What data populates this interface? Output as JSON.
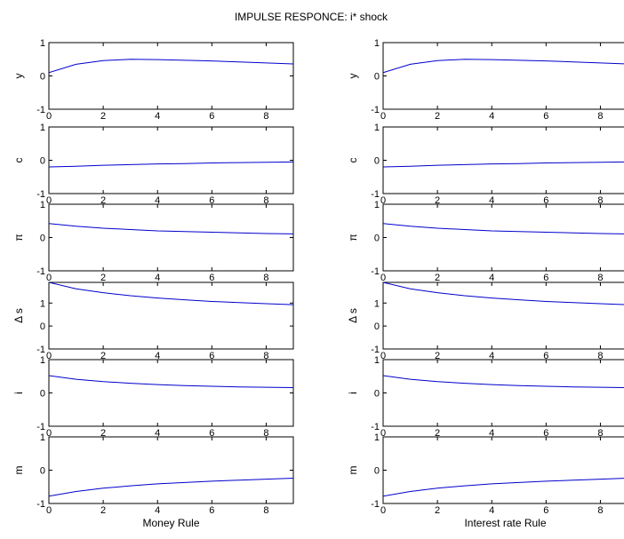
{
  "title": "IMPULSE RESPONCE: i* shock",
  "chart_data": {
    "type": "line",
    "title": "IMPULSE RESPONCE: i* shock",
    "line_color": "#0000cc",
    "columns": [
      {
        "xlabel": "Money Rule",
        "panels": [
          {
            "ylabel": "y",
            "ylim": [
              -1,
              1
            ],
            "yticks": [
              "-1",
              "0",
              "1"
            ],
            "x": [
              0,
              1,
              2,
              3,
              4,
              5,
              6,
              7,
              8,
              9
            ],
            "values": [
              0.1,
              0.35,
              0.46,
              0.5,
              0.49,
              0.47,
              0.45,
              0.42,
              0.39,
              0.36
            ]
          },
          {
            "ylabel": "c",
            "ylim": [
              -1,
              1
            ],
            "yticks": [
              "-1",
              "0",
              "1"
            ],
            "x": [
              0,
              1,
              2,
              3,
              4,
              5,
              6,
              7,
              8,
              9
            ],
            "values": [
              -0.2,
              -0.18,
              -0.15,
              -0.13,
              -0.11,
              -0.1,
              -0.08,
              -0.07,
              -0.06,
              -0.05
            ]
          },
          {
            "ylabel": "π",
            "ylim": [
              -1,
              1
            ],
            "yticks": [
              "-1",
              "0",
              "1"
            ],
            "x": [
              0,
              1,
              2,
              3,
              4,
              5,
              6,
              7,
              8,
              9
            ],
            "values": [
              0.42,
              0.34,
              0.28,
              0.24,
              0.2,
              0.18,
              0.16,
              0.14,
              0.12,
              0.11
            ]
          },
          {
            "ylabel": "Δ s",
            "ylim": [
              -1,
              1.9
            ],
            "yticks": [
              "-1",
              "0",
              "1"
            ],
            "x": [
              0,
              1,
              2,
              3,
              4,
              5,
              6,
              7,
              8,
              9
            ],
            "values": [
              1.9,
              1.62,
              1.45,
              1.32,
              1.22,
              1.14,
              1.07,
              1.02,
              0.97,
              0.93
            ]
          },
          {
            "ylabel": "i",
            "ylim": [
              -1,
              1
            ],
            "yticks": [
              "-1",
              "0",
              "1"
            ],
            "x": [
              0,
              1,
              2,
              3,
              4,
              5,
              6,
              7,
              8,
              9
            ],
            "values": [
              0.52,
              0.41,
              0.34,
              0.29,
              0.25,
              0.22,
              0.2,
              0.18,
              0.17,
              0.16
            ]
          },
          {
            "ylabel": "m",
            "ylim": [
              -1,
              1
            ],
            "yticks": [
              "-1",
              "0",
              "1"
            ],
            "x": [
              0,
              1,
              2,
              3,
              4,
              5,
              6,
              7,
              8,
              9
            ],
            "values": [
              -0.78,
              -0.64,
              -0.54,
              -0.47,
              -0.41,
              -0.37,
              -0.33,
              -0.3,
              -0.27,
              -0.24
            ]
          }
        ]
      },
      {
        "xlabel": "Interest rate Rule",
        "panels": [
          {
            "ylabel": "y",
            "ylim": [
              -1,
              1
            ],
            "yticks": [
              "-1",
              "0",
              "1"
            ],
            "x": [
              0,
              1,
              2,
              3,
              4,
              5,
              6,
              7,
              8,
              9
            ],
            "values": [
              0.1,
              0.35,
              0.46,
              0.5,
              0.49,
              0.47,
              0.45,
              0.42,
              0.39,
              0.36
            ]
          },
          {
            "ylabel": "c",
            "ylim": [
              -1,
              1
            ],
            "yticks": [
              "-1",
              "0",
              "1"
            ],
            "x": [
              0,
              1,
              2,
              3,
              4,
              5,
              6,
              7,
              8,
              9
            ],
            "values": [
              -0.2,
              -0.18,
              -0.15,
              -0.13,
              -0.11,
              -0.1,
              -0.08,
              -0.07,
              -0.06,
              -0.05
            ]
          },
          {
            "ylabel": "π",
            "ylim": [
              -1,
              1
            ],
            "yticks": [
              "-1",
              "0",
              "1"
            ],
            "x": [
              0,
              1,
              2,
              3,
              4,
              5,
              6,
              7,
              8,
              9
            ],
            "values": [
              0.42,
              0.34,
              0.28,
              0.24,
              0.2,
              0.18,
              0.16,
              0.14,
              0.12,
              0.11
            ]
          },
          {
            "ylabel": "Δ s",
            "ylim": [
              -1,
              1.9
            ],
            "yticks": [
              "-1",
              "0",
              "1"
            ],
            "x": [
              0,
              1,
              2,
              3,
              4,
              5,
              6,
              7,
              8,
              9
            ],
            "values": [
              1.9,
              1.62,
              1.45,
              1.32,
              1.22,
              1.14,
              1.07,
              1.02,
              0.97,
              0.93
            ]
          },
          {
            "ylabel": "i",
            "ylim": [
              -1,
              1
            ],
            "yticks": [
              "-1",
              "0",
              "1"
            ],
            "x": [
              0,
              1,
              2,
              3,
              4,
              5,
              6,
              7,
              8,
              9
            ],
            "values": [
              0.52,
              0.41,
              0.34,
              0.29,
              0.25,
              0.22,
              0.2,
              0.18,
              0.17,
              0.16
            ]
          },
          {
            "ylabel": "m",
            "ylim": [
              -1,
              1
            ],
            "yticks": [
              "-1",
              "0",
              "1"
            ],
            "x": [
              0,
              1,
              2,
              3,
              4,
              5,
              6,
              7,
              8,
              9
            ],
            "values": [
              -0.78,
              -0.64,
              -0.54,
              -0.47,
              -0.41,
              -0.37,
              -0.33,
              -0.3,
              -0.27,
              -0.24
            ]
          }
        ]
      }
    ],
    "xlim": [
      0,
      9
    ],
    "xticks": [
      "0",
      "2",
      "4",
      "6",
      "8"
    ],
    "grid": false,
    "legend": "none"
  }
}
